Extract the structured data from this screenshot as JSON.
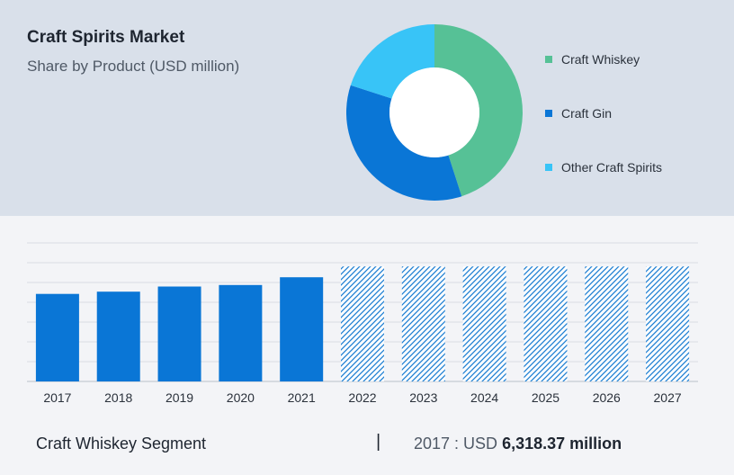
{
  "header": {
    "title": "Craft Spirits Market",
    "subtitle": "Share by Product (USD million)"
  },
  "colors": {
    "whiskey": "#56c196",
    "gin": "#0a76d6",
    "other": "#38c4f7",
    "bar": "#0a76d6",
    "hatch": "#1e7fd3",
    "grid": "#d8dce3"
  },
  "chart_data": [
    {
      "type": "pie",
      "title": "",
      "donut": true,
      "legend_position": "right",
      "slices": [
        {
          "label": "Craft Whiskey",
          "value": 45,
          "color": "#56c196"
        },
        {
          "label": "Craft Gin",
          "value": 35,
          "color": "#0a76d6"
        },
        {
          "label": "Other Craft Spirits",
          "value": 20,
          "color": "#38c4f7"
        }
      ]
    },
    {
      "type": "bar",
      "title": "",
      "xlabel": "",
      "ylabel": "",
      "grid": true,
      "categories": [
        "2017",
        "2018",
        "2019",
        "2020",
        "2021",
        "2022",
        "2023",
        "2024",
        "2025",
        "2026",
        "2027"
      ],
      "values": [
        6318.37,
        6480,
        6850,
        6960,
        7520,
        8300,
        8300,
        8300,
        8300,
        8300,
        8300
      ],
      "forecast": [
        false,
        false,
        false,
        false,
        false,
        true,
        true,
        true,
        true,
        true,
        true
      ],
      "ylim": [
        0,
        10000
      ]
    }
  ],
  "footer": {
    "segment_label": "Craft Whiskey Segment",
    "separator": "|",
    "year_prefix": "2017 : ",
    "currency": "USD ",
    "amount": "6,318.37 million"
  }
}
